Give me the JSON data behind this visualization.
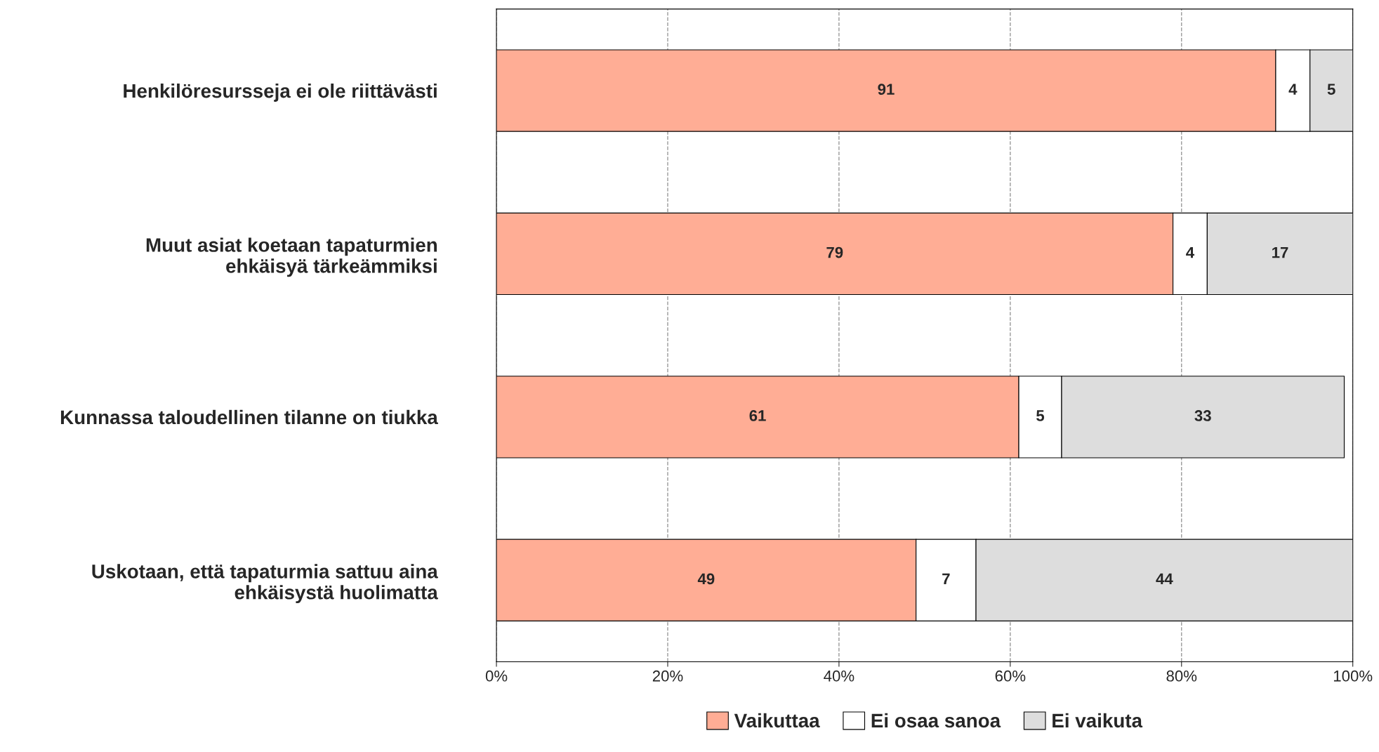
{
  "chart_data": {
    "type": "bar",
    "orientation": "horizontal",
    "stacked": true,
    "categories": [
      "Henkilöresursseja ei ole riittävästi",
      "Muut asiat koetaan tapaturmien\nehkäisyä tärkeämmiksi",
      "Kunnassa taloudellinen tilanne on tiukka",
      "Uskotaan, että tapaturmia sattuu aina\nehkäisystä huolimatta"
    ],
    "series": [
      {
        "name": "Vaikuttaa",
        "color": "#ffad95",
        "values": [
          91,
          79,
          61,
          49
        ]
      },
      {
        "name": "Ei osaa sanoa",
        "color": "#ffffff",
        "values": [
          4,
          4,
          5,
          7
        ]
      },
      {
        "name": "Ei vaikuta",
        "color": "#dddddd",
        "values": [
          5,
          17,
          33,
          44
        ]
      }
    ],
    "xlim": [
      0,
      100
    ],
    "xticks": [
      {
        "value": 0,
        "label": "0%"
      },
      {
        "value": 20,
        "label": "20%"
      },
      {
        "value": 40,
        "label": "40%"
      },
      {
        "value": 60,
        "label": "60%"
      },
      {
        "value": 80,
        "label": "80%"
      },
      {
        "value": 100,
        "label": "100%"
      }
    ],
    "data_labels": true,
    "grid": "x",
    "legend": "bottom"
  }
}
